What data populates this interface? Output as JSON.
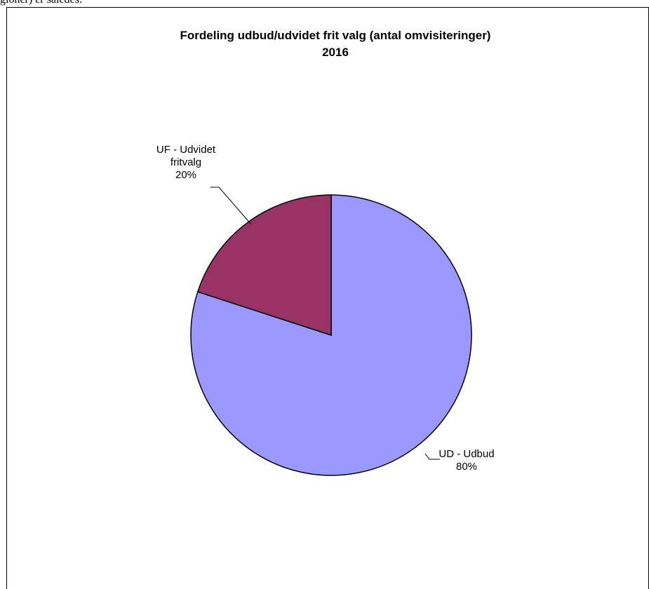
{
  "page": {
    "top_text": "gioner) er således:"
  },
  "chart_data": {
    "type": "pie",
    "title": "Fordeling udbud/udvidet frit valg (antal omvisiteringer)",
    "subtitle": "2016",
    "slices": [
      {
        "name_lines": [
          "UD - Udbud"
        ],
        "value": 80,
        "label": "80%",
        "color": "#9999ff"
      },
      {
        "name_lines": [
          "UF - Udvidet",
          "fritvalg"
        ],
        "value": 20,
        "label": "20%",
        "color": "#993366"
      }
    ]
  }
}
